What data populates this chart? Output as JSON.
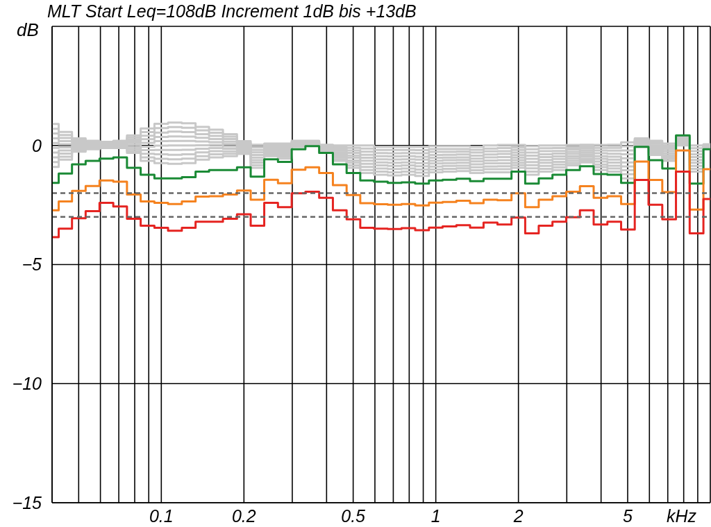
{
  "chart_data": {
    "type": "step",
    "title": "MLT Start Leq=108dB Increment 1dB bis +13dB",
    "xlabel": "kHz",
    "ylabel": "dB",
    "log": "x",
    "grid": true,
    "xlim": [
      0.04,
      10
    ],
    "xticks": [
      {
        "value": 0.05,
        "label": null
      },
      {
        "value": 0.06,
        "label": null
      },
      {
        "value": 0.07,
        "label": null
      },
      {
        "value": 0.08,
        "label": null
      },
      {
        "value": 0.09,
        "label": null
      },
      0.1,
      0.2,
      {
        "value": 0.3,
        "label": null
      },
      {
        "value": 0.4,
        "label": null
      },
      0.5,
      {
        "value": 0.6,
        "label": null
      },
      {
        "value": 0.7,
        "label": null
      },
      {
        "value": 0.8,
        "label": null
      },
      {
        "value": 0.9,
        "label": null
      },
      1,
      2,
      {
        "value": 3,
        "label": null
      },
      {
        "value": 4,
        "label": null
      },
      5,
      {
        "value": 6,
        "label": null
      },
      {
        "value": 7,
        "label": null
      },
      {
        "value": 8,
        "label": null
      },
      {
        "value": 9,
        "label": null
      }
    ],
    "ylim": [
      -15,
      5
    ],
    "yticks": [
      {
        "value": -15,
        "label": "−15"
      },
      {
        "value": -10,
        "label": "−10"
      },
      {
        "value": -5,
        "label": "−5"
      },
      0
    ],
    "ref_lines": [
      {
        "axis": "y",
        "value": -2,
        "color": "#666666",
        "line_style": "dashed"
      },
      {
        "axis": "y",
        "value": -3,
        "color": "#666666",
        "line_style": "dashed"
      }
    ],
    "x": [
      0.04,
      0.0447,
      0.05,
      0.0562,
      0.0631,
      0.0708,
      0.0794,
      0.0891,
      0.1,
      0.112,
      0.126,
      0.141,
      0.158,
      0.178,
      0.2,
      0.224,
      0.251,
      0.282,
      0.316,
      0.355,
      0.398,
      0.447,
      0.501,
      0.562,
      0.631,
      0.708,
      0.794,
      0.891,
      1,
      1.12,
      1.26,
      1.41,
      1.58,
      1.78,
      2,
      2.24,
      2.51,
      2.82,
      3.16,
      3.55,
      3.98,
      4.47,
      5.01,
      5.62,
      6.31,
      7.08,
      7.94,
      8.91,
      10
    ],
    "series": [
      {
        "color": "#c8c8c8",
        "values": [
          0.9,
          0.57,
          0.3,
          0.2,
          0.15,
          0.2,
          0.42,
          0.71,
          0.91,
          0.96,
          0.93,
          0.78,
          0.66,
          0.47,
          0.18,
          0.03,
          0.08,
          0.08,
          0.2,
          0.2,
          0.03,
          0,
          0,
          0,
          -0.06,
          -0.06,
          -0.06,
          -0.06,
          -0.03,
          -0.03,
          -0.03,
          -0.06,
          0,
          0.02,
          0.02,
          -0.03,
          0,
          0,
          0.02,
          0.03,
          0.02,
          0.03,
          0.13,
          0.3,
          0.2,
          0.08,
          0.36,
          0,
          0.05
        ]
      },
      {
        "color": "#c8c8c8",
        "values": [
          0.7,
          0.44,
          0.24,
          0.16,
          0.12,
          0.17,
          0.34,
          0.56,
          0.73,
          0.77,
          0.74,
          0.63,
          0.53,
          0.37,
          0.12,
          -0.08,
          0.02,
          0.01,
          0.17,
          0.18,
          0,
          -0.07,
          -0.1,
          -0.13,
          -0.19,
          -0.19,
          -0.19,
          -0.2,
          -0.15,
          -0.15,
          -0.15,
          -0.18,
          -0.13,
          -0.11,
          -0.09,
          -0.16,
          -0.12,
          -0.11,
          -0.08,
          -0.05,
          -0.1,
          -0.1,
          -0.04,
          0.26,
          0.13,
          0,
          0.32,
          -0.12,
          0.03
        ]
      },
      {
        "color": "#c8c8c8",
        "values": [
          0.5,
          0.31,
          0.18,
          0.12,
          0.09,
          0.13,
          0.26,
          0.41,
          0.54,
          0.58,
          0.56,
          0.47,
          0.4,
          0.27,
          0.06,
          -0.19,
          -0.04,
          -0.06,
          0.14,
          0.16,
          -0.03,
          -0.14,
          -0.21,
          -0.26,
          -0.32,
          -0.33,
          -0.32,
          -0.33,
          -0.27,
          -0.27,
          -0.26,
          -0.3,
          -0.25,
          -0.24,
          -0.19,
          -0.3,
          -0.24,
          -0.23,
          -0.17,
          -0.13,
          -0.21,
          -0.22,
          -0.21,
          0.22,
          0.07,
          -0.08,
          0.28,
          -0.24,
          0.02
        ]
      },
      {
        "color": "#c8c8c8",
        "values": [
          0.3,
          0.18,
          0.11,
          0.08,
          0.06,
          0.1,
          0.18,
          0.26,
          0.36,
          0.38,
          0.37,
          0.32,
          0.27,
          0.16,
          0,
          -0.29,
          -0.1,
          -0.13,
          0.11,
          0.13,
          -0.06,
          -0.22,
          -0.31,
          -0.39,
          -0.45,
          -0.46,
          -0.45,
          -0.47,
          -0.4,
          -0.39,
          -0.38,
          -0.43,
          -0.38,
          -0.36,
          -0.3,
          -0.43,
          -0.37,
          -0.34,
          -0.27,
          -0.22,
          -0.33,
          -0.35,
          -0.37,
          0.18,
          0,
          -0.16,
          0.24,
          -0.37,
          0
        ]
      },
      {
        "color": "#c8c8c8",
        "values": [
          0.1,
          0.05,
          0.05,
          0.04,
          0.03,
          0.06,
          0.1,
          0.11,
          0.18,
          0.19,
          0.19,
          0.17,
          0.14,
          0.06,
          -0.06,
          -0.4,
          -0.16,
          -0.2,
          0.08,
          0.11,
          -0.09,
          -0.29,
          -0.42,
          -0.52,
          -0.58,
          -0.59,
          -0.58,
          -0.6,
          -0.52,
          -0.51,
          -0.5,
          -0.55,
          -0.5,
          -0.49,
          -0.41,
          -0.56,
          -0.49,
          -0.46,
          -0.36,
          -0.3,
          -0.45,
          -0.47,
          -0.54,
          0.14,
          -0.07,
          -0.24,
          0.2,
          -0.49,
          -0.02
        ]
      },
      {
        "color": "#c8c8c8",
        "values": [
          -0.1,
          -0.08,
          -0.01,
          0,
          0.01,
          0.03,
          0.02,
          -0.05,
          -0.01,
          0,
          0,
          0.01,
          0.02,
          -0.04,
          -0.12,
          -0.51,
          -0.21,
          -0.27,
          0.06,
          0.09,
          -0.11,
          -0.36,
          -0.52,
          -0.64,
          -0.71,
          -0.73,
          -0.71,
          -0.74,
          -0.64,
          -0.62,
          -0.61,
          -0.67,
          -0.63,
          -0.62,
          -0.51,
          -0.7,
          -0.61,
          -0.57,
          -0.46,
          -0.38,
          -0.56,
          -0.6,
          -0.71,
          0.1,
          -0.13,
          -0.33,
          0.16,
          -0.61,
          -0.03
        ]
      },
      {
        "color": "#c8c8c8",
        "values": [
          -0.3,
          -0.21,
          -0.07,
          -0.04,
          -0.02,
          -0.01,
          -0.07,
          -0.2,
          -0.19,
          -0.19,
          -0.18,
          -0.14,
          -0.11,
          -0.14,
          -0.18,
          -0.62,
          -0.27,
          -0.34,
          0.03,
          0.07,
          -0.14,
          -0.43,
          -0.63,
          -0.77,
          -0.84,
          -0.86,
          -0.84,
          -0.87,
          -0.76,
          -0.74,
          -0.73,
          -0.79,
          -0.75,
          -0.75,
          -0.62,
          -0.83,
          -0.73,
          -0.69,
          -0.55,
          -0.46,
          -0.68,
          -0.72,
          -0.88,
          0.06,
          -0.2,
          -0.41,
          0.12,
          -0.73,
          -0.05
        ]
      },
      {
        "color": "#c8c8c8",
        "values": [
          -0.5,
          -0.34,
          -0.14,
          -0.08,
          -0.05,
          -0.04,
          -0.15,
          -0.35,
          -0.37,
          -0.39,
          -0.37,
          -0.29,
          -0.24,
          -0.25,
          -0.24,
          -0.72,
          -0.33,
          -0.41,
          0,
          0.04,
          -0.17,
          -0.51,
          -0.73,
          -0.9,
          -0.97,
          -0.99,
          -0.97,
          -1.01,
          -0.89,
          -0.86,
          -0.85,
          -0.92,
          -0.88,
          -0.87,
          -0.73,
          -0.96,
          -0.86,
          -0.8,
          -0.65,
          -0.55,
          -0.8,
          -0.85,
          -1.04,
          0.02,
          -0.27,
          -0.49,
          0.08,
          -0.86,
          -0.07
        ]
      },
      {
        "color": "#c8c8c8",
        "values": [
          -0.7,
          -0.47,
          -0.2,
          -0.12,
          -0.08,
          -0.08,
          -0.23,
          -0.5,
          -0.56,
          -0.58,
          -0.55,
          -0.45,
          -0.37,
          -0.35,
          -0.3,
          -0.83,
          -0.39,
          -0.48,
          -0.03,
          0.02,
          -0.2,
          -0.58,
          -0.84,
          -1.03,
          -1.1,
          -1.13,
          -1.1,
          -1.14,
          -1.01,
          -0.98,
          -0.96,
          -1.04,
          -1,
          -1,
          -0.83,
          -1.1,
          -0.98,
          -0.92,
          -0.74,
          -0.63,
          -0.91,
          -0.97,
          -1.21,
          -0.02,
          -0.33,
          -0.57,
          0.04,
          -0.98,
          -0.08
        ]
      },
      {
        "color": "#c8c8c8",
        "values": [
          -0.9,
          -0.6,
          -0.26,
          -0.16,
          -0.11,
          -0.11,
          -0.31,
          -0.65,
          -0.74,
          -0.77,
          -0.74,
          -0.6,
          -0.5,
          -0.45,
          -0.36,
          -0.94,
          -0.45,
          -0.55,
          -0.06,
          0,
          -0.23,
          -0.65,
          -0.94,
          -1.16,
          -1.23,
          -1.26,
          -1.23,
          -1.28,
          -1.13,
          -1.1,
          -1.08,
          -1.16,
          -1.13,
          -1.13,
          -0.94,
          -1.23,
          -1.1,
          -1.03,
          -0.84,
          -0.71,
          -1.03,
          -1.1,
          -1.38,
          -0.06,
          -0.4,
          -0.65,
          0,
          -1.1,
          -0.1
        ]
      },
      {
        "color": "#1a8a35",
        "values": [
          -1.57,
          -1.18,
          -0.79,
          -0.65,
          -0.55,
          -0.5,
          -0.94,
          -1.23,
          -1.38,
          -1.38,
          -1.33,
          -1.1,
          -1.03,
          -1.03,
          -0.92,
          -1.31,
          -0.58,
          -0.69,
          -0.16,
          -0.03,
          -0.31,
          -0.79,
          -1.16,
          -1.47,
          -1.52,
          -1.57,
          -1.55,
          -1.6,
          -1.47,
          -1.44,
          -1.4,
          -1.5,
          -1.4,
          -1.4,
          -1.1,
          -1.6,
          -1.38,
          -1.23,
          -1.03,
          -0.87,
          -1.2,
          -1.23,
          -1.57,
          -0.06,
          -0.62,
          -0.97,
          0.42,
          -1.6,
          -0.16
        ]
      },
      {
        "color": "#f5821f",
        "values": [
          -2.72,
          -2.35,
          -1.91,
          -1.7,
          -1.47,
          -1.52,
          -2.06,
          -2.35,
          -2.41,
          -2.46,
          -2.35,
          -2.15,
          -2.13,
          -2.06,
          -1.89,
          -2.28,
          -1.44,
          -1.59,
          -1.02,
          -0.92,
          -1.16,
          -1.67,
          -2.08,
          -2.42,
          -2.47,
          -2.49,
          -2.46,
          -2.52,
          -2.4,
          -2.37,
          -2.32,
          -2.42,
          -2.28,
          -2.3,
          -2.01,
          -2.59,
          -2.28,
          -2.13,
          -1.94,
          -1.71,
          -2.2,
          -2.13,
          -2.46,
          -0.68,
          -1.45,
          -1.96,
          -0.21,
          -2.69,
          -1.0
        ]
      },
      {
        "color": "#e52421",
        "values": [
          -3.85,
          -3.49,
          -3.06,
          -2.76,
          -2.41,
          -2.56,
          -3.08,
          -3.37,
          -3.46,
          -3.58,
          -3.46,
          -3.2,
          -3.2,
          -3.08,
          -2.89,
          -3.37,
          -2.41,
          -2.59,
          -2.01,
          -1.94,
          -2.2,
          -2.72,
          -3.1,
          -3.46,
          -3.49,
          -3.51,
          -3.47,
          -3.56,
          -3.45,
          -3.4,
          -3.35,
          -3.45,
          -3.24,
          -3.32,
          -3.03,
          -3.69,
          -3.37,
          -3.2,
          -3.01,
          -2.72,
          -3.32,
          -3.2,
          -3.53,
          -1.45,
          -2.49,
          -3.1,
          -1.1,
          -3.69,
          -2.25
        ]
      }
    ]
  }
}
